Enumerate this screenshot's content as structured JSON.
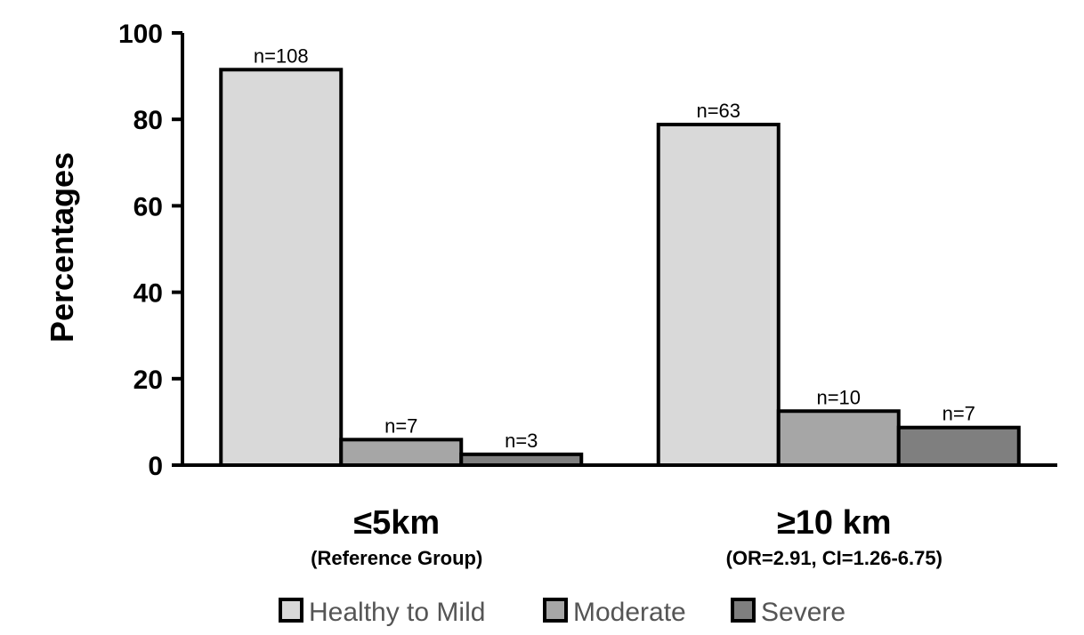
{
  "chart_data": {
    "type": "bar",
    "ylabel": "Percentages",
    "xlabel": "",
    "ylim": [
      0,
      100
    ],
    "yticks": [
      "0",
      "20",
      "40",
      "60",
      "80",
      "100"
    ],
    "grid": false,
    "legend_position": "bottom",
    "categories": [
      {
        "label": "≤5km",
        "sublabel": "(Reference Group)"
      },
      {
        "label": "≥10 km",
        "sublabel": "(OR=2.91, CI=1.26-6.75)"
      }
    ],
    "series": [
      {
        "name": "Healthy to Mild",
        "color": "#d9d9d9",
        "values": [
          91.5,
          78.8
        ],
        "labels": [
          "n=108",
          "n=63"
        ]
      },
      {
        "name": "Moderate",
        "color": "#a6a6a6",
        "values": [
          5.9,
          12.5
        ],
        "labels": [
          "n=7",
          "n=10"
        ]
      },
      {
        "name": "Severe",
        "color": "#7f7f7f",
        "values": [
          2.5,
          8.7
        ],
        "labels": [
          "n=3",
          "n=7"
        ]
      }
    ]
  }
}
